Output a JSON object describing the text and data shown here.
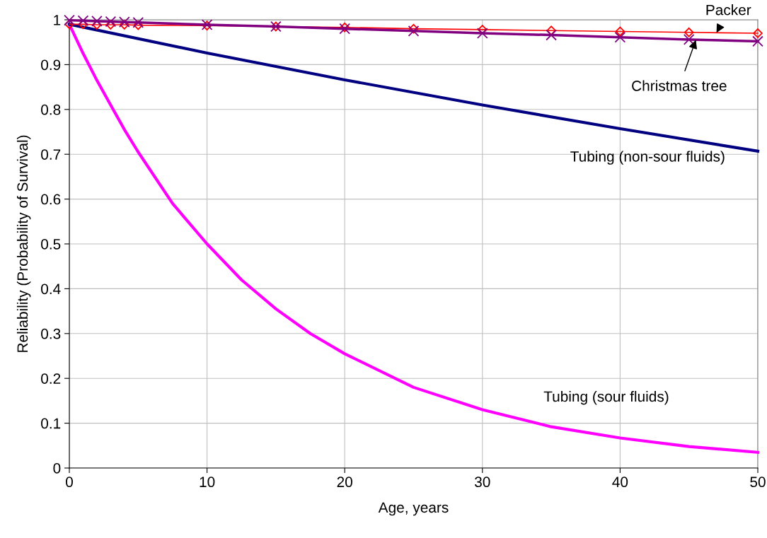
{
  "chart_data": {
    "type": "line",
    "xlabel": "Age, years",
    "ylabel": "Reliability (Probability of Survival)",
    "xlim": [
      0,
      50
    ],
    "xticks": [
      0,
      10,
      20,
      30,
      40,
      50
    ],
    "ylim": [
      0,
      1
    ],
    "yticks": [
      0,
      0.1,
      0.2,
      0.3,
      0.4,
      0.5,
      0.6,
      0.7,
      0.8,
      0.9,
      1
    ],
    "grid": true,
    "series": [
      {
        "color": "#ff00ff",
        "marker": "none",
        "x": [
          0,
          1,
          2,
          3,
          4,
          5,
          7.5,
          10,
          12.5,
          15,
          17.5,
          20,
          25,
          30,
          35,
          40,
          45,
          50
        ],
        "values": [
          0.99,
          0.925,
          0.865,
          0.81,
          0.755,
          0.705,
          0.59,
          0.5,
          0.42,
          0.355,
          0.3,
          0.255,
          0.18,
          0.13,
          0.092,
          0.067,
          0.048,
          0.035
        ]
      },
      {
        "color": "#000080",
        "marker": "none",
        "x": [
          0,
          10,
          20,
          30,
          40,
          50
        ],
        "values": [
          0.99,
          0.926,
          0.866,
          0.81,
          0.757,
          0.707
        ]
      },
      {
        "color": "#ff0000",
        "marker": "diamond",
        "x": [
          0,
          1,
          2,
          3,
          4,
          5,
          10,
          15,
          20,
          25,
          30,
          35,
          40,
          45,
          50
        ],
        "values": [
          0.99,
          0.99,
          0.989,
          0.989,
          0.989,
          0.988,
          0.987,
          0.985,
          0.983,
          0.98,
          0.978,
          0.976,
          0.974,
          0.972,
          0.97
        ]
      },
      {
        "color": "#800080",
        "marker": "cross",
        "x": [
          0,
          1,
          2,
          3,
          4,
          5,
          10,
          15,
          20,
          25,
          30,
          35,
          40,
          45,
          50
        ],
        "values": [
          0.999,
          0.998,
          0.997,
          0.996,
          0.995,
          0.994,
          0.989,
          0.985,
          0.98,
          0.975,
          0.97,
          0.966,
          0.961,
          0.956,
          0.952
        ]
      }
    ],
    "annotations": [
      {
        "text": "Packer",
        "x": 47,
        "y": 0.971
      },
      {
        "text": "Christmas tree",
        "x": 45.5,
        "y": 0.955
      },
      {
        "text": "Tubing (non-sour fluids)",
        "x": 42,
        "y": 0.747
      },
      {
        "text": "Tubing (sour fluids)",
        "x": 39,
        "y": 0.069
      }
    ]
  }
}
